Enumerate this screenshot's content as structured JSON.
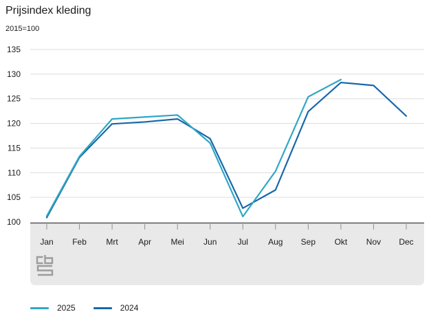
{
  "header": {
    "title": "Prijsindex kleding",
    "subtitle": "2015=100"
  },
  "colors": {
    "series_2025": "#2fa7c3",
    "series_2024": "#1767ab",
    "grid": "#dcdcdc",
    "axis": "#55565a",
    "band": "#e9e9e9",
    "tick": "#8f8f8f",
    "text": "#1a1a1a",
    "logo": "#9c9c9c"
  },
  "icons": {
    "logo": "cbs-logo"
  },
  "chart_data": {
    "type": "line",
    "title": "Prijsindex kleding",
    "subtitle": "2015=100",
    "x": [
      "Jan",
      "Feb",
      "Mrt",
      "Apr",
      "Mei",
      "Jun",
      "Jul",
      "Aug",
      "Sep",
      "Okt",
      "Nov",
      "Dec"
    ],
    "series": [
      {
        "name": "2025",
        "color_key": "series_2025",
        "values": [
          101.2,
          113.3,
          120.9,
          121.3,
          121.7,
          116.0,
          101.1,
          110.3,
          125.4,
          128.9,
          null,
          null
        ]
      },
      {
        "name": "2024",
        "color_key": "series_2024",
        "values": [
          100.9,
          113.1,
          119.9,
          120.3,
          120.9,
          116.9,
          102.8,
          106.5,
          122.4,
          128.3,
          127.7,
          121.5
        ]
      }
    ],
    "ylim": [
      100,
      135
    ],
    "yticks": [
      100,
      105,
      110,
      115,
      120,
      125,
      130,
      135
    ],
    "grid": true,
    "legend_position": "bottom"
  },
  "legend": {
    "items": [
      {
        "label": "2025",
        "color_key": "series_2025"
      },
      {
        "label": "2024",
        "color_key": "series_2024"
      }
    ]
  }
}
